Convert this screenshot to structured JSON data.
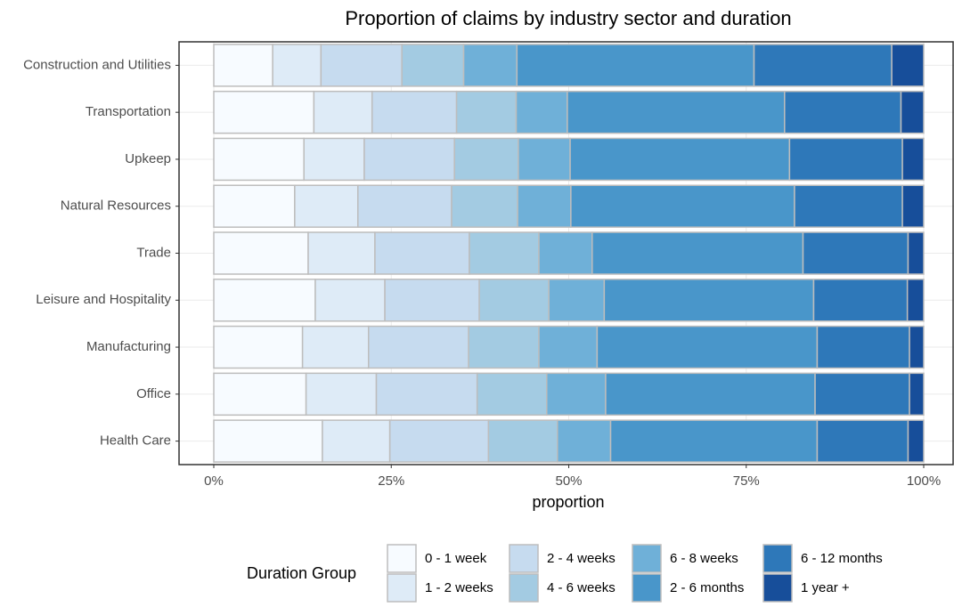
{
  "chart_data": {
    "type": "stacked_bar_horizontal",
    "title": "Proportion of claims by industry sector and duration",
    "x_label": "proportion",
    "legend_title": "Duration Group",
    "grid": true,
    "categories": [
      "Construction and Utilities",
      "Transportation",
      "Upkeep",
      "Natural Resources",
      "Trade",
      "Leisure and Hospitality",
      "Manufacturing",
      "Office",
      "Health Care"
    ],
    "xlim": [
      0,
      100
    ],
    "xticks": [
      {
        "value": 0,
        "label": "0%"
      },
      {
        "value": 25,
        "label": "25%"
      },
      {
        "value": 50,
        "label": "50%"
      },
      {
        "value": 75,
        "label": "75%"
      },
      {
        "value": 100,
        "label": "100%"
      }
    ],
    "series": [
      {
        "name": "0 - 1 week",
        "color": "#f7fbff",
        "values": [
          8.3,
          14.1,
          12.7,
          11.4,
          13.3,
          14.3,
          12.5,
          13.0,
          15.3
        ]
      },
      {
        "name": "1 - 2 weeks",
        "color": "#deebf7",
        "values": [
          6.8,
          8.2,
          8.5,
          8.9,
          9.4,
          9.8,
          9.3,
          9.9,
          9.5
        ]
      },
      {
        "name": "2 - 4 weeks",
        "color": "#c6dbef",
        "values": [
          11.4,
          11.9,
          12.7,
          13.2,
          13.3,
          13.3,
          14.1,
          14.2,
          13.9
        ]
      },
      {
        "name": "4 - 6 weeks",
        "color": "#a3cbe2",
        "values": [
          8.7,
          8.4,
          9.0,
          9.3,
          9.8,
          9.8,
          9.9,
          9.8,
          9.7
        ]
      },
      {
        "name": "6 - 8 weeks",
        "color": "#6fb0d8",
        "values": [
          7.5,
          7.2,
          7.3,
          7.5,
          7.5,
          7.8,
          8.2,
          8.3,
          7.5
        ]
      },
      {
        "name": "2 - 6 months",
        "color": "#4996ca",
        "values": [
          33.4,
          30.6,
          30.9,
          31.5,
          29.7,
          29.5,
          31.0,
          29.5,
          29.1
        ]
      },
      {
        "name": "6 - 12 months",
        "color": "#2e78b9",
        "values": [
          19.4,
          16.4,
          15.9,
          15.2,
          14.8,
          13.2,
          13.0,
          13.3,
          12.8
        ]
      },
      {
        "name": "1 year +",
        "color": "#174e9a",
        "values": [
          4.5,
          3.2,
          3.0,
          3.0,
          2.2,
          2.3,
          2.0,
          2.0,
          2.2
        ]
      }
    ]
  }
}
